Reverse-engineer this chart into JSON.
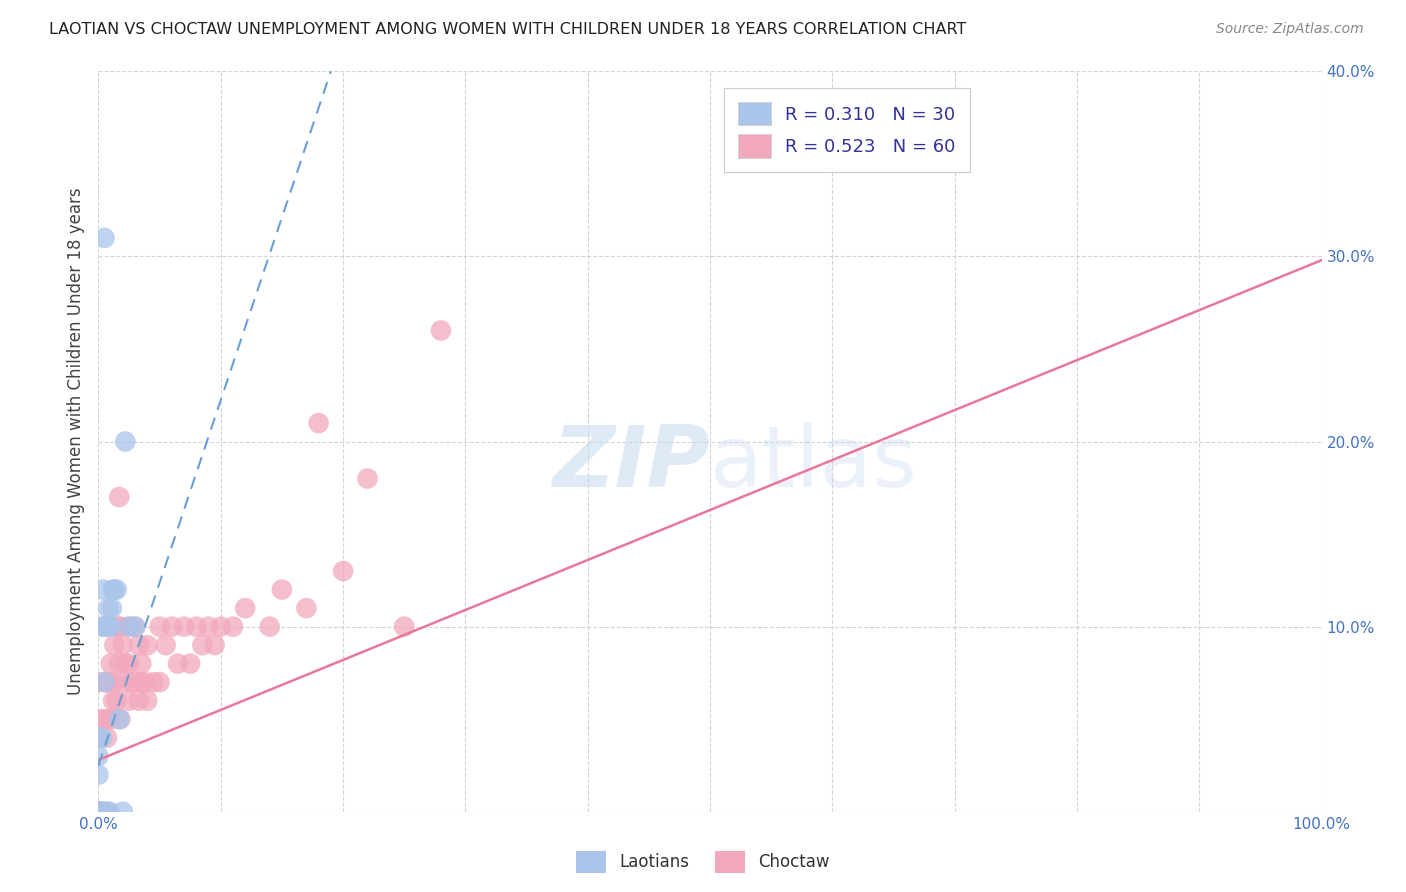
{
  "title": "LAOTIAN VS CHOCTAW UNEMPLOYMENT AMONG WOMEN WITH CHILDREN UNDER 18 YEARS CORRELATION CHART",
  "source": "Source: ZipAtlas.com",
  "ylabel": "Unemployment Among Women with Children Under 18 years",
  "xlabel": "",
  "xlim": [
    0,
    1.0
  ],
  "ylim": [
    0,
    0.4
  ],
  "xticks": [
    0.0,
    0.1,
    0.2,
    0.3,
    0.4,
    0.5,
    0.6,
    0.7,
    0.8,
    0.9,
    1.0
  ],
  "yticks": [
    0.0,
    0.1,
    0.2,
    0.3,
    0.4
  ],
  "xtick_labels": [
    "0.0%",
    "",
    "",
    "",
    "",
    "",
    "",
    "",
    "",
    "",
    "100.0%"
  ],
  "ytick_labels": [
    "",
    "10.0%",
    "20.0%",
    "30.0%",
    "40.0%"
  ],
  "background_color": "#ffffff",
  "laotian_color": "#aac4ea",
  "choctaw_color": "#f2a8bc",
  "laotian_line_color": "#6b9fd4",
  "choctaw_line_color": "#e87898",
  "legend_label_laotian": "R = 0.310   N = 30",
  "legend_label_choctaw": "R = 0.523   N = 60",
  "laotian_x": [
    0.0,
    0.0,
    0.0,
    0.0,
    0.0,
    0.0,
    0.0,
    0.0,
    0.003,
    0.003,
    0.003,
    0.004,
    0.005,
    0.005,
    0.007,
    0.008,
    0.008,
    0.009,
    0.01,
    0.011,
    0.012,
    0.013,
    0.015,
    0.017,
    0.02,
    0.022,
    0.025,
    0.03,
    0.005,
    0.005
  ],
  "laotian_y": [
    0.0,
    0.0,
    0.0,
    0.0,
    0.0,
    0.02,
    0.03,
    0.04,
    0.0,
    0.04,
    0.1,
    0.12,
    0.0,
    0.1,
    0.0,
    0.1,
    0.11,
    0.0,
    0.1,
    0.11,
    0.12,
    0.12,
    0.12,
    0.05,
    0.0,
    0.2,
    0.1,
    0.1,
    0.07,
    0.31
  ],
  "choctaw_x": [
    0.0,
    0.0,
    0.0,
    0.0,
    0.0,
    0.005,
    0.005,
    0.007,
    0.008,
    0.008,
    0.01,
    0.01,
    0.012,
    0.013,
    0.013,
    0.015,
    0.015,
    0.017,
    0.017,
    0.018,
    0.018,
    0.02,
    0.02,
    0.022,
    0.025,
    0.025,
    0.025,
    0.027,
    0.03,
    0.03,
    0.033,
    0.033,
    0.035,
    0.035,
    0.038,
    0.04,
    0.04,
    0.045,
    0.05,
    0.05,
    0.055,
    0.06,
    0.065,
    0.07,
    0.075,
    0.08,
    0.085,
    0.09,
    0.095,
    0.1,
    0.11,
    0.12,
    0.14,
    0.15,
    0.17,
    0.18,
    0.2,
    0.22,
    0.25,
    0.28
  ],
  "choctaw_y": [
    0.0,
    0.0,
    0.0,
    0.05,
    0.07,
    0.05,
    0.07,
    0.04,
    0.05,
    0.07,
    0.05,
    0.08,
    0.06,
    0.07,
    0.09,
    0.06,
    0.1,
    0.08,
    0.17,
    0.05,
    0.1,
    0.07,
    0.09,
    0.08,
    0.06,
    0.08,
    0.1,
    0.07,
    0.07,
    0.1,
    0.06,
    0.09,
    0.07,
    0.08,
    0.07,
    0.06,
    0.09,
    0.07,
    0.07,
    0.1,
    0.09,
    0.1,
    0.08,
    0.1,
    0.08,
    0.1,
    0.09,
    0.1,
    0.09,
    0.1,
    0.1,
    0.11,
    0.1,
    0.12,
    0.11,
    0.21,
    0.13,
    0.18,
    0.1,
    0.26
  ],
  "choctaw_line_x0": 0.0,
  "choctaw_line_y0": 0.028,
  "choctaw_line_x1": 1.0,
  "choctaw_line_y1": 0.298,
  "laotian_line_x0": 0.0,
  "laotian_line_y0": 0.025,
  "laotian_line_x1": 0.19,
  "laotian_line_y1": 0.4
}
